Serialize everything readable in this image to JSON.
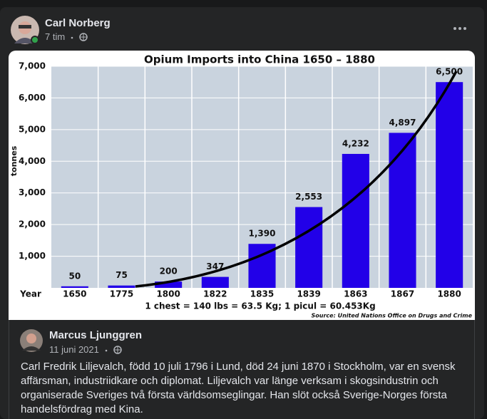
{
  "post": {
    "author": "Carl Norberg",
    "time": "7 tim"
  },
  "chart_data": {
    "type": "bar",
    "title": "Opium Imports into China 1650 – 1880",
    "y_label": "tonnes",
    "x_label": "Year",
    "footnote": "1 chest = 140 lbs = 63.5 Kg; 1 picul = 60.453Kg",
    "source": "Source: United Nations Office on Drugs and Crime",
    "categories": [
      "1650",
      "1775",
      "1800",
      "1822",
      "1835",
      "1839",
      "1863",
      "1867",
      "1880"
    ],
    "values": [
      50,
      75,
      200,
      347,
      1390,
      2553,
      4232,
      4897,
      6500
    ],
    "value_labels": [
      "50",
      "75",
      "200",
      "347",
      "1,390",
      "2,553",
      "4,232",
      "4,897",
      "6,500"
    ],
    "color": "#2200e8",
    "ylim": [
      0,
      7000
    ],
    "yticks": [
      {
        "value": 1000,
        "label": "1,000"
      },
      {
        "value": 2000,
        "label": "2,000"
      },
      {
        "value": 3000,
        "label": "3,000"
      },
      {
        "value": 4000,
        "label": "4,000"
      },
      {
        "value": 5000,
        "label": "5,000"
      },
      {
        "value": 6000,
        "label": "6,000"
      },
      {
        "value": 7000,
        "label": "7,000"
      }
    ],
    "grid": true
  },
  "shared_post": {
    "author": "Marcus Ljunggren",
    "time": "11 juni 2021",
    "text": [
      "Carl Fredrik Liljevalch, född 10 juli 1796 i Lund, död 24 juni 1870 i Stockholm, var en svensk",
      "affärsman, industriidkare och diplomat. Liljevalch var länge verksam i skogsindustrin och",
      "organiserade Sveriges två första världsomseglingar. Han slöt också Sverige-Norges första",
      "handelsfördrag med Kina."
    ]
  }
}
